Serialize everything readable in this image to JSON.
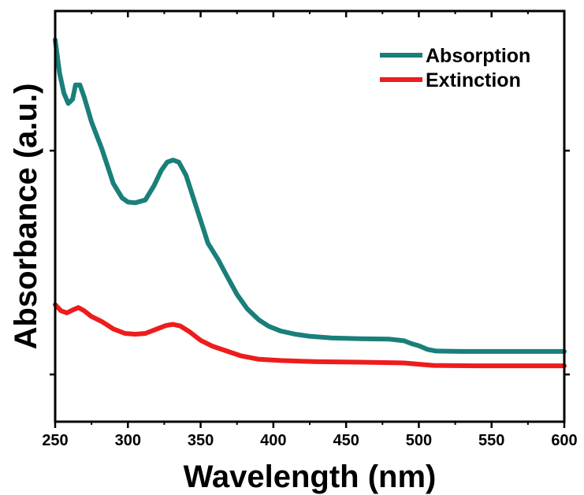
{
  "chart_data": {
    "type": "line",
    "xlabel": "Wavelength (nm)",
    "ylabel": "Absorbance (a.u.)",
    "xlim": [
      250,
      600
    ],
    "ylim": [
      0,
      1
    ],
    "x_ticks": [
      250,
      300,
      350,
      400,
      450,
      500,
      550,
      600
    ],
    "y_tick_labels": "none",
    "grid": false,
    "legend_position": "top-right",
    "series": [
      {
        "name": "Absorption",
        "color": "#1a7f7a",
        "points": [
          [
            250,
            0.93
          ],
          [
            253,
            0.85
          ],
          [
            256,
            0.8
          ],
          [
            259,
            0.775
          ],
          [
            262,
            0.785
          ],
          [
            264,
            0.82
          ],
          [
            267,
            0.82
          ],
          [
            270,
            0.79
          ],
          [
            275,
            0.73
          ],
          [
            282,
            0.665
          ],
          [
            290,
            0.58
          ],
          [
            296,
            0.545
          ],
          [
            300,
            0.535
          ],
          [
            305,
            0.533
          ],
          [
            312,
            0.54
          ],
          [
            318,
            0.575
          ],
          [
            323,
            0.612
          ],
          [
            327,
            0.632
          ],
          [
            331,
            0.637
          ],
          [
            335,
            0.632
          ],
          [
            340,
            0.6
          ],
          [
            345,
            0.545
          ],
          [
            350,
            0.49
          ],
          [
            355,
            0.435
          ],
          [
            362,
            0.395
          ],
          [
            368,
            0.355
          ],
          [
            375,
            0.31
          ],
          [
            382,
            0.275
          ],
          [
            390,
            0.248
          ],
          [
            397,
            0.232
          ],
          [
            405,
            0.221
          ],
          [
            415,
            0.213
          ],
          [
            425,
            0.208
          ],
          [
            440,
            0.204
          ],
          [
            460,
            0.202
          ],
          [
            480,
            0.201
          ],
          [
            490,
            0.197
          ],
          [
            495,
            0.19
          ],
          [
            500,
            0.185
          ],
          [
            506,
            0.176
          ],
          [
            512,
            0.172
          ],
          [
            530,
            0.171
          ],
          [
            560,
            0.171
          ],
          [
            600,
            0.171
          ]
        ]
      },
      {
        "name": "Extinction",
        "color": "#ee1c1c",
        "points": [
          [
            250,
            0.285
          ],
          [
            254,
            0.27
          ],
          [
            258,
            0.265
          ],
          [
            262,
            0.272
          ],
          [
            266,
            0.278
          ],
          [
            270,
            0.27
          ],
          [
            275,
            0.256
          ],
          [
            282,
            0.244
          ],
          [
            290,
            0.226
          ],
          [
            298,
            0.215
          ],
          [
            305,
            0.213
          ],
          [
            312,
            0.215
          ],
          [
            320,
            0.226
          ],
          [
            326,
            0.234
          ],
          [
            331,
            0.237
          ],
          [
            336,
            0.233
          ],
          [
            342,
            0.22
          ],
          [
            350,
            0.198
          ],
          [
            358,
            0.184
          ],
          [
            368,
            0.172
          ],
          [
            378,
            0.16
          ],
          [
            390,
            0.152
          ],
          [
            405,
            0.149
          ],
          [
            430,
            0.146
          ],
          [
            460,
            0.145
          ],
          [
            490,
            0.143
          ],
          [
            500,
            0.14
          ],
          [
            510,
            0.137
          ],
          [
            540,
            0.136
          ],
          [
            570,
            0.136
          ],
          [
            600,
            0.136
          ]
        ]
      }
    ]
  }
}
